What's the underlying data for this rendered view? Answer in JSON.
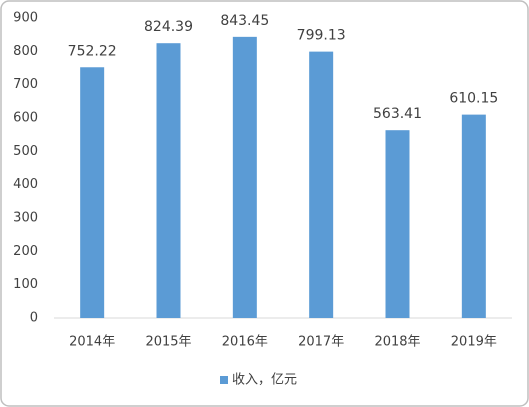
{
  "chart_data": {
    "type": "bar",
    "categories": [
      "2014年",
      "2015年",
      "2016年",
      "2017年",
      "2018年",
      "2019年"
    ],
    "series": [
      {
        "name": "收入，亿元",
        "color": "#5b9bd5",
        "values": [
          752.22,
          824.39,
          843.45,
          799.13,
          563.41,
          610.15
        ]
      }
    ],
    "ylim": [
      0,
      900
    ],
    "yticks": [
      0,
      100,
      200,
      300,
      400,
      500,
      600,
      700,
      800,
      900
    ],
    "grid": false,
    "legend": "bottom"
  }
}
